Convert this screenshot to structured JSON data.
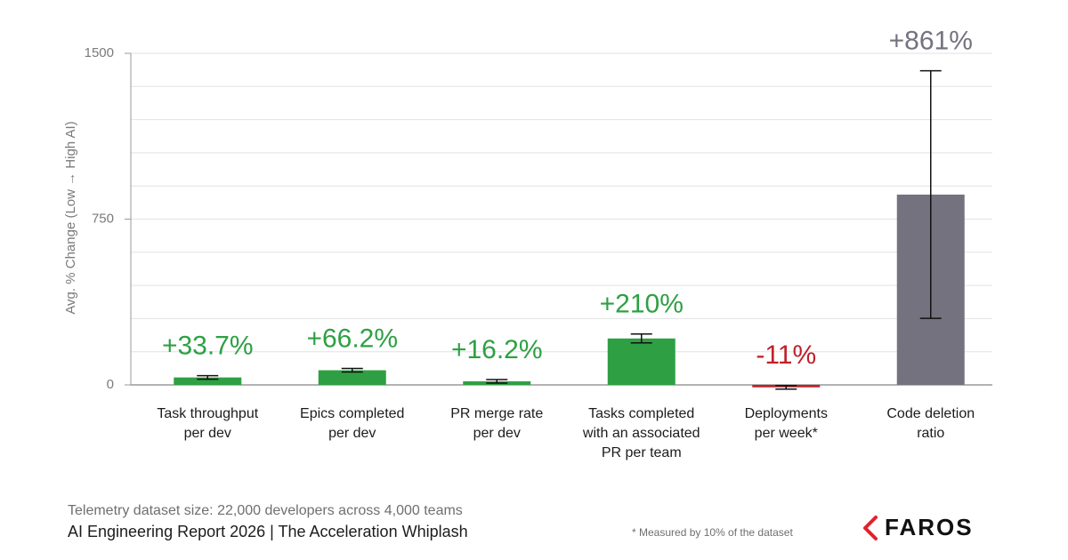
{
  "chart_data": {
    "type": "bar",
    "y_label": "Avg. % Change (Low → High AI)",
    "categories": [
      [
        "Task throughput",
        "per dev"
      ],
      [
        "Epics completed",
        "per dev"
      ],
      [
        "PR merge rate",
        "per dev"
      ],
      [
        "Tasks completed",
        "with an associated",
        "PR per team"
      ],
      [
        "Deployments",
        "per week*"
      ],
      [
        "Code deletion",
        "ratio"
      ]
    ],
    "series": [
      {
        "values": [
          33.7,
          66.2,
          16.2,
          210,
          -11,
          861
        ],
        "value_labels": [
          "+33.7%",
          "+66.2%",
          "+16.2%",
          "+210%",
          "-11%",
          "+861%"
        ],
        "errors": [
          8,
          8,
          8,
          20,
          8,
          560
        ],
        "colors": [
          "#2ea043",
          "#2ea043",
          "#2ea043",
          "#2ea043",
          "#c0202a",
          "#75727f"
        ],
        "label_colors": [
          "#2ea043",
          "#2ea043",
          "#2ea043",
          "#2ea043",
          "#c0202a",
          "#75727f"
        ]
      }
    ],
    "ylim": [
      0,
      1500
    ],
    "yticks": [
      0,
      750,
      1500
    ],
    "minor_yticks": [
      150,
      300,
      450,
      600,
      900,
      1050,
      1200,
      1350
    ],
    "grid": true,
    "footer": {
      "dataset": "Telemetry dataset size: 22,000 developers across 4,000 teams",
      "report": "AI Engineering Report 2026 | The Acceleration Whiplash",
      "footnote": "* Measured by 10% of the dataset",
      "logo": "FAROS"
    }
  }
}
